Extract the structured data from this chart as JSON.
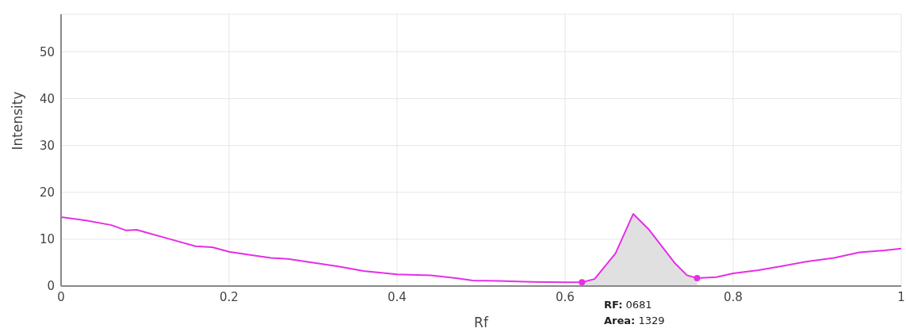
{
  "chart_data": {
    "type": "line",
    "xlabel": "Rf",
    "ylabel": "Intensity",
    "xlim": [
      0,
      1
    ],
    "xticks": [
      0,
      0.2,
      0.4,
      0.6,
      0.8,
      1
    ],
    "ylim": [
      0,
      58
    ],
    "yticks": [
      0,
      10,
      20,
      30,
      40,
      50
    ],
    "grid": true,
    "series": [
      {
        "type": "area",
        "color": "#e0e0e0",
        "x": [
          0.62,
          0.635,
          0.66,
          0.681,
          0.7,
          0.73,
          0.745,
          0.757
        ],
        "values": [
          0.8,
          1.5,
          7,
          15.4,
          12,
          5,
          2.3,
          1.7
        ]
      },
      {
        "color": "#e62ee6",
        "x": [
          0,
          0.03,
          0.06,
          0.077,
          0.09,
          0.1,
          0.13,
          0.16,
          0.18,
          0.2,
          0.23,
          0.25,
          0.27,
          0.3,
          0.33,
          0.36,
          0.4,
          0.44,
          0.47,
          0.49,
          0.52,
          0.56,
          0.6,
          0.62,
          0.635,
          0.66,
          0.681,
          0.7,
          0.73,
          0.745,
          0.757,
          0.78,
          0.8,
          0.83,
          0.86,
          0.89,
          0.92,
          0.95,
          0.98,
          1
        ],
        "values": [
          14.7,
          14,
          13,
          11.9,
          12,
          11.5,
          10,
          8.5,
          8.3,
          7.3,
          6.5,
          6,
          5.8,
          5,
          4.2,
          3.2,
          2.5,
          2.3,
          1.7,
          1.2,
          1.1,
          0.9,
          0.8,
          0.8,
          1.5,
          7,
          15.4,
          12,
          5,
          2.3,
          1.7,
          1.9,
          2.7,
          3.4,
          4.3,
          5.3,
          6,
          7.2,
          7.6,
          8
        ]
      },
      {
        "type": "scatter",
        "color": "#e62ee6",
        "x": [
          0.62,
          0.757
        ],
        "values": [
          0.8,
          1.7
        ]
      }
    ],
    "annotations": [
      "RF: 0681",
      "Area: 1329"
    ]
  }
}
